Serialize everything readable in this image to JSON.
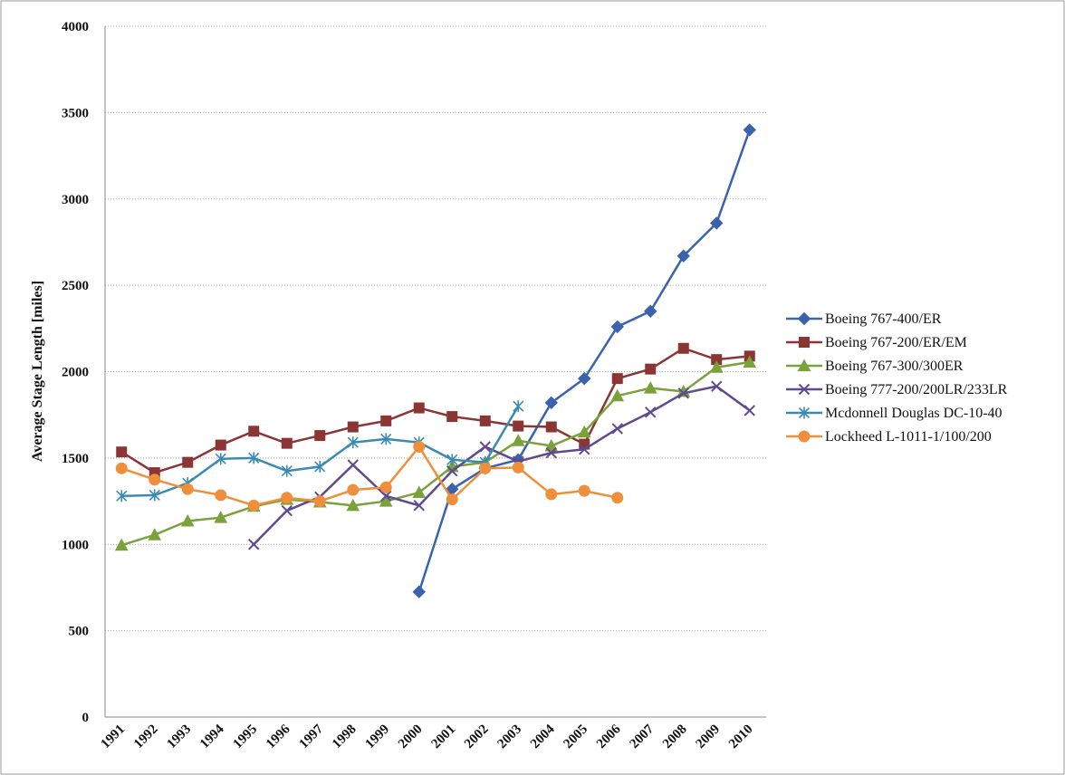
{
  "chart_data": {
    "type": "line",
    "y_label": "Average Stage Length [miles]",
    "categories": [
      "1991",
      "1992",
      "1993",
      "1994",
      "1995",
      "1996",
      "1997",
      "1998",
      "1999",
      "2000",
      "2001",
      "2002",
      "2003",
      "2004",
      "2005",
      "2006",
      "2007",
      "2008",
      "2009",
      "2010"
    ],
    "ylim": [
      0,
      4000
    ],
    "yticks": [
      0,
      500,
      1000,
      1500,
      2000,
      2500,
      3000,
      3500,
      4000
    ],
    "grid": true,
    "legend": "right",
    "series": [
      {
        "name": "Boeing 767-400/ER",
        "color": "#3a62ad",
        "marker": "diamond",
        "values": [
          null,
          null,
          null,
          null,
          null,
          null,
          null,
          null,
          null,
          725,
          1320,
          1440,
          1490,
          1820,
          1960,
          2260,
          2350,
          2670,
          2860,
          3400
        ]
      },
      {
        "name": "Boeing 767-200/ER/EM",
        "color": "#8b3535",
        "marker": "square",
        "values": [
          1535,
          1415,
          1475,
          1575,
          1655,
          1585,
          1630,
          1680,
          1715,
          1790,
          1740,
          1715,
          1685,
          1680,
          1580,
          1960,
          2015,
          2135,
          2070,
          2090
        ]
      },
      {
        "name": "Boeing 767-300/300ER",
        "color": "#7aa23c",
        "marker": "triangle",
        "values": [
          995,
          1055,
          1135,
          1155,
          1220,
          1260,
          1245,
          1225,
          1250,
          1300,
          1450,
          1475,
          1600,
          1570,
          1650,
          1860,
          1905,
          1885,
          2025,
          2055
        ]
      },
      {
        "name": "Boeing 777-200/200LR/233LR",
        "color": "#5e4a8e",
        "marker": "x",
        "values": [
          null,
          null,
          null,
          null,
          1000,
          1195,
          1275,
          1460,
          1280,
          1225,
          1425,
          1565,
          1480,
          1530,
          1550,
          1670,
          1765,
          1875,
          1915,
          1775
        ]
      },
      {
        "name": "Mcdonnell Douglas DC-10-40",
        "color": "#3a8bb4",
        "marker": "star",
        "values": [
          1280,
          1285,
          1355,
          1495,
          1500,
          1425,
          1450,
          1590,
          1610,
          1590,
          1490,
          1475,
          1800,
          null,
          null,
          null,
          null,
          null,
          null,
          null
        ]
      },
      {
        "name": "Lockheed L-1011-1/100/200",
        "color": "#ef8f3c",
        "marker": "circle",
        "values": [
          1440,
          1375,
          1320,
          1285,
          1225,
          1270,
          1250,
          1315,
          1330,
          1565,
          1260,
          1440,
          1445,
          1290,
          1310,
          1270,
          null,
          null,
          null,
          null
        ]
      }
    ]
  }
}
